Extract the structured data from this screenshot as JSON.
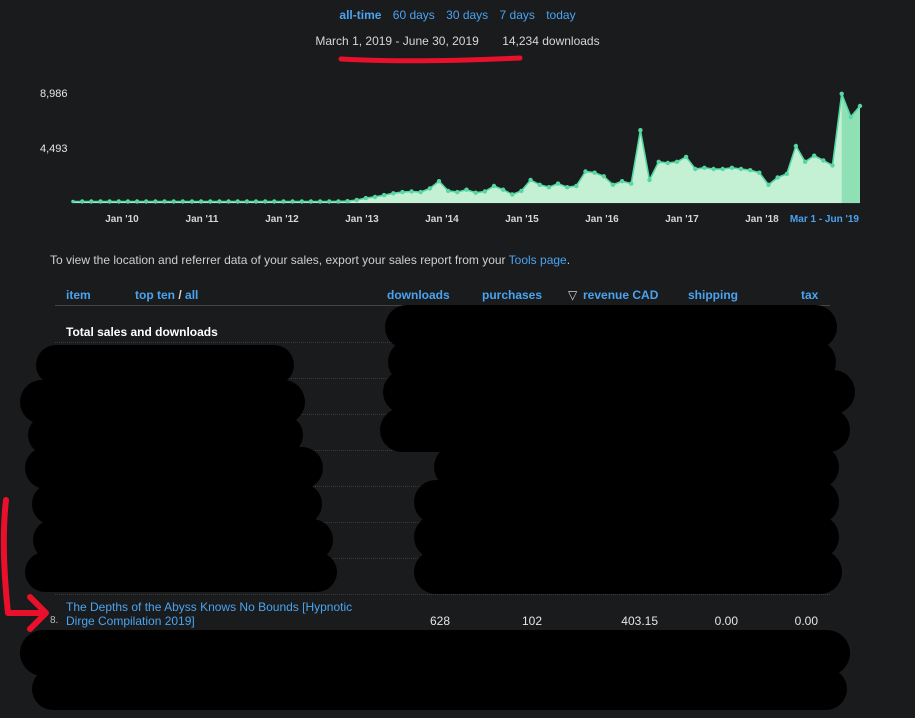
{
  "range_tabs": [
    {
      "label": "all-time",
      "active": true
    },
    {
      "label": "60 days"
    },
    {
      "label": "30 days"
    },
    {
      "label": "7 days"
    },
    {
      "label": "today"
    }
  ],
  "range_info": {
    "dates": "March 1, 2019 - June 30, 2019",
    "downloads": "14,234 downloads"
  },
  "chart_data": {
    "type": "area",
    "y_ticks": [
      "8,986",
      "4,493"
    ],
    "ylim": [
      0,
      8986
    ],
    "x_labels": [
      "Jan '10",
      "Jan '11",
      "Jan '12",
      "Jan '13",
      "Jan '14",
      "Jan '15",
      "Jan '16",
      "Jan '17",
      "Jan '18"
    ],
    "highlight_label": "Mar 1 - Jun '19",
    "series": [
      {
        "values": [
          120,
          120,
          120,
          120,
          120,
          120,
          120,
          120,
          120,
          120,
          120,
          120,
          120,
          120,
          120,
          120,
          120,
          120,
          120,
          120,
          120,
          120,
          120,
          120,
          120,
          120,
          120,
          120,
          120,
          130,
          150,
          250,
          400,
          500,
          650,
          800,
          900,
          950,
          900,
          1200,
          1800,
          1000,
          900,
          1100,
          850,
          950,
          1400,
          1100,
          700,
          1000,
          1900,
          1500,
          1300,
          1600,
          1300,
          1400,
          2600,
          2500,
          2200,
          1500,
          1800,
          1600,
          6000,
          1900,
          3400,
          3300,
          3400,
          3800,
          2800,
          2900,
          2800,
          2800,
          2900,
          2800,
          2700,
          2500,
          1500,
          2100,
          2400,
          4700,
          3400,
          3900,
          3500,
          3100,
          9000,
          7100,
          8000
        ]
      }
    ],
    "highlight_start_index": 84,
    "fill_color": "#c4f0d4",
    "line_color": "#55d6a3",
    "background": "#1a1b1d"
  },
  "note": {
    "text": "To view the location and referrer data of your sales, export your sales report from your ",
    "link": "Tools page",
    "end": "."
  },
  "table": {
    "headers": {
      "item": "item",
      "top_ten": "top ten",
      "sep": " / ",
      "all": "all",
      "downloads": "downloads",
      "purchases": "purchases",
      "sort_arrow": "▽",
      "revenue": "revenue CAD",
      "shipping": "shipping",
      "tax": "tax"
    },
    "total_label": "Total sales and downloads",
    "visible_row": {
      "rank": "8.",
      "item": "The Depths of the Abyss Knows No Bounds [Hypnotic Dirge Compilation 2019]",
      "downloads": "628",
      "purchases": "102",
      "revenue": "403.15",
      "shipping": "0.00",
      "tax": "0.00"
    }
  },
  "colors": {
    "link": "#4aa3f0",
    "annotation": "#e8102a"
  }
}
